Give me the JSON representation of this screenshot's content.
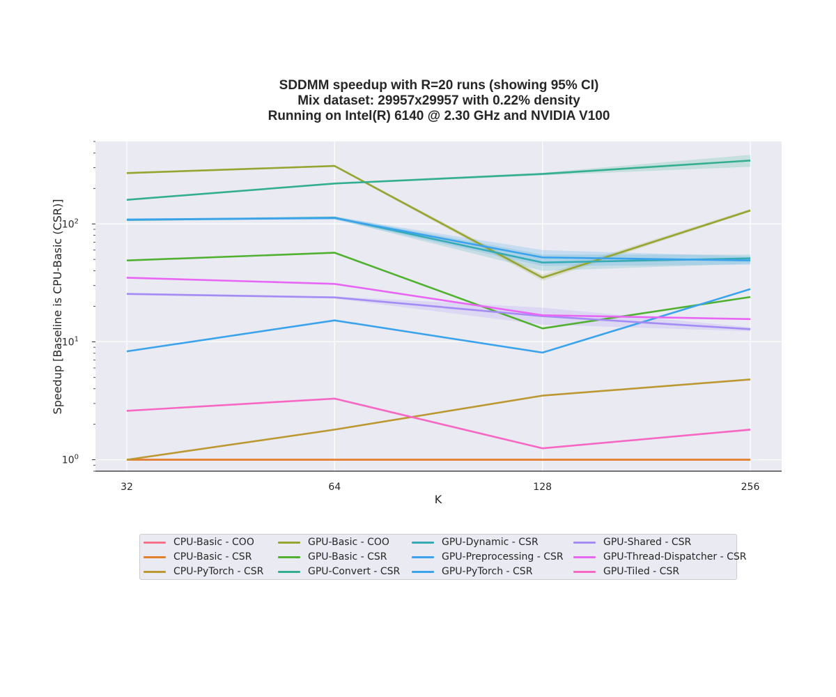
{
  "chart_data": {
    "type": "line",
    "title_lines": [
      "SDDMM speedup with R=20 runs (showing 95% CI)",
      "Mix dataset: 29957x29957 with 0.22% density",
      "Running on Intel(R) 6140 @ 2.30 GHz and NVIDIA V100"
    ],
    "xlabel": "K",
    "ylabel": "Speedup [Baseline is CPU-Basic (CSR)]",
    "x": [
      32,
      64,
      128,
      256
    ],
    "x_scale": "log2",
    "y_scale": "log10",
    "ylim": [
      0.8,
      500
    ],
    "y_ticks": [
      {
        "base": "10",
        "exp": "0",
        "value": 1
      },
      {
        "base": "10",
        "exp": "1",
        "value": 10
      },
      {
        "base": "10",
        "exp": "2",
        "value": 100
      }
    ],
    "grid": true,
    "legend_location": "bottom-center",
    "legend_columns": 4,
    "background": "#eaeaf2",
    "series": [
      {
        "name": "CPU-Basic - COO",
        "color": "#f77189",
        "values": [
          1.0,
          1.0,
          1.0,
          1.0
        ],
        "ci_low": null,
        "ci_high": null
      },
      {
        "name": "CPU-Basic - CSR",
        "color": "#e1812c",
        "values": [
          1.0,
          1.0,
          1.0,
          1.0
        ],
        "ci_low": null,
        "ci_high": null
      },
      {
        "name": "CPU-PyTorch - CSR",
        "color": "#bb9832",
        "values": [
          1.0,
          1.8,
          3.5,
          4.8
        ],
        "ci_low": null,
        "ci_high": null
      },
      {
        "name": "GPU-Basic - COO",
        "color": "#97a431",
        "values": [
          270,
          310,
          35,
          130
        ],
        "ci_low": [
          265,
          305,
          33,
          127
        ],
        "ci_high": [
          275,
          315,
          37,
          134
        ]
      },
      {
        "name": "GPU-Basic - CSR",
        "color": "#50b131",
        "values": [
          49,
          57,
          13,
          24
        ],
        "ci_low": null,
        "ci_high": null
      },
      {
        "name": "GPU-Convert - CSR",
        "color": "#34ae91",
        "values": [
          160,
          220,
          265,
          345
        ],
        "ci_low": [
          158,
          217,
          258,
          305
        ],
        "ci_high": [
          162,
          223,
          272,
          385
        ]
      },
      {
        "name": "GPU-Dynamic - CSR",
        "color": "#37abb5",
        "values": [
          108,
          113,
          47,
          51
        ],
        "ci_low": [
          106,
          110,
          40,
          46
        ],
        "ci_high": [
          110,
          116,
          55,
          55
        ]
      },
      {
        "name": "GPU-Preprocessing - CSR",
        "color": "#3ba3ec",
        "values": [
          109,
          112,
          52,
          49
        ],
        "ci_low": [
          107,
          109,
          44,
          45
        ],
        "ci_high": [
          111,
          115,
          60,
          53
        ]
      },
      {
        "name": "GPU-PyTorch - CSR",
        "color": "#3ba3ec",
        "values": [
          8.3,
          15.2,
          8.1,
          28
        ],
        "ci_low": null,
        "ci_high": null
      },
      {
        "name": "GPU-Shared - CSR",
        "color": "#a48cf4",
        "values": [
          25.5,
          23.8,
          16.5,
          12.8
        ],
        "ci_low": [
          25.0,
          23.3,
          14.0,
          12.3
        ],
        "ci_high": [
          26.0,
          24.3,
          19.5,
          13.3
        ]
      },
      {
        "name": "GPU-Thread-Dispatcher - CSR",
        "color": "#e866f4",
        "values": [
          35,
          31,
          16.8,
          15.6
        ],
        "ci_low": null,
        "ci_high": null
      },
      {
        "name": "GPU-Tiled - CSR",
        "color": "#f668c2",
        "values": [
          2.6,
          3.3,
          1.25,
          1.8
        ],
        "ci_low": [
          2.6,
          3.3,
          1.24,
          1.76
        ],
        "ci_high": [
          2.6,
          3.3,
          1.26,
          1.84
        ]
      }
    ]
  }
}
